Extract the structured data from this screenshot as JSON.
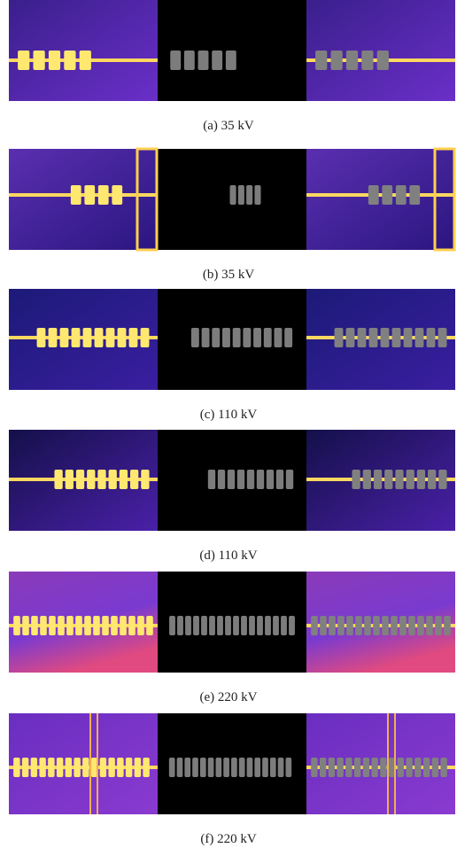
{
  "panels": [
    {
      "caption": "(a) 35 kV"
    },
    {
      "caption": "(b) 35 kV"
    },
    {
      "caption": "(c) 110 kV"
    },
    {
      "caption": "(d) 110 kV"
    },
    {
      "caption": "(e) 220 kV"
    },
    {
      "caption": "(f) 220 kV"
    }
  ]
}
